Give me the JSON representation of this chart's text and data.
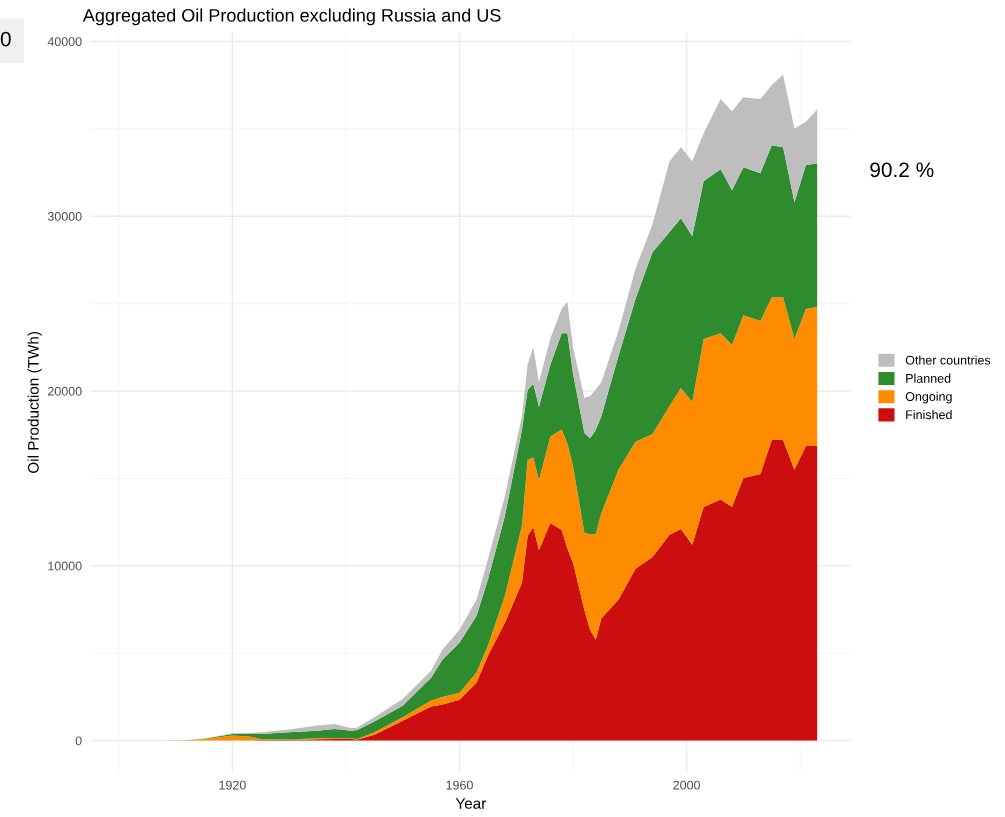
{
  "chart_data": {
    "type": "area",
    "stacked": true,
    "title": "Aggregated Oil Production excluding Russia and US",
    "xlabel": "Year",
    "ylabel": "Oil Production (TWh)",
    "x": [
      1907,
      1912,
      1915,
      1920,
      1923,
      1925,
      1930,
      1935,
      1938,
      1941,
      1942,
      1945,
      1950,
      1955,
      1957,
      1960,
      1963,
      1965,
      1968,
      1971,
      1972,
      1973,
      1974,
      1976,
      1978,
      1979,
      1980,
      1982,
      1983,
      1984,
      1985,
      1988,
      1991,
      1994,
      1997,
      1999,
      2001,
      2003,
      2006,
      2008,
      2010,
      2013,
      2015,
      2017,
      2019,
      2021,
      2023
    ],
    "series": [
      {
        "name": "Finished",
        "color": "#cd0e0e",
        "values": [
          0,
          0,
          0,
          0,
          0,
          40,
          40,
          80,
          95,
          95,
          60,
          340,
          1140,
          1950,
          2070,
          2340,
          3310,
          4860,
          6740,
          9030,
          11700,
          12200,
          10900,
          12450,
          12050,
          11000,
          10170,
          7490,
          6340,
          5770,
          7000,
          8060,
          9830,
          10500,
          11770,
          12100,
          11200,
          13370,
          13800,
          13370,
          15030,
          15250,
          17200,
          17200,
          15500,
          16860,
          16860
        ]
      },
      {
        "name": "Ongoing",
        "color": "#ff8c00",
        "values": [
          0,
          20,
          95,
          290,
          230,
          55,
          20,
          50,
          55,
          25,
          35,
          140,
          190,
          350,
          430,
          400,
          580,
          570,
          1550,
          3260,
          4360,
          4000,
          4000,
          4950,
          5750,
          6000,
          5540,
          4400,
          5460,
          6030,
          6030,
          7440,
          7270,
          7040,
          7370,
          8070,
          8170,
          9600,
          9500,
          9260,
          9310,
          8750,
          8170,
          8170,
          7470,
          7830,
          7940
        ]
      },
      {
        "name": "Planned",
        "color": "#2e8b2e",
        "values": [
          0,
          0,
          5,
          90,
          150,
          285,
          420,
          440,
          520,
          450,
          505,
          610,
          670,
          1300,
          2130,
          2860,
          3250,
          3770,
          4560,
          5480,
          4000,
          4200,
          4200,
          4100,
          5500,
          6300,
          5290,
          5710,
          5500,
          5970,
          5540,
          6500,
          8160,
          10400,
          9950,
          9720,
          9490,
          9030,
          9390,
          8860,
          8460,
          8460,
          8690,
          8570,
          7830,
          8220,
          8230
        ]
      },
      {
        "name": "Other countries",
        "color": "#bebebe",
        "values": [
          10,
          10,
          10,
          40,
          60,
          100,
          150,
          290,
          280,
          130,
          150,
          240,
          380,
          400,
          570,
          740,
          920,
          1140,
          1150,
          800,
          1440,
          2100,
          1400,
          1500,
          1400,
          1800,
          1500,
          2000,
          2400,
          2330,
          1930,
          1430,
          1740,
          1600,
          4050,
          4050,
          4280,
          2740,
          4010,
          4510,
          4000,
          4240,
          3440,
          4160,
          4200,
          2490,
          3070
        ]
      }
    ],
    "xlim": [
      1895,
      2029
    ],
    "xticks": [
      1920,
      1960,
      2000
    ],
    "ylim": [
      -1800,
      40500
    ],
    "yticks": [
      0,
      10000,
      20000,
      30000,
      40000
    ],
    "grid": true,
    "legend": "right",
    "annotations": [
      "0",
      "90.2 %"
    ]
  }
}
